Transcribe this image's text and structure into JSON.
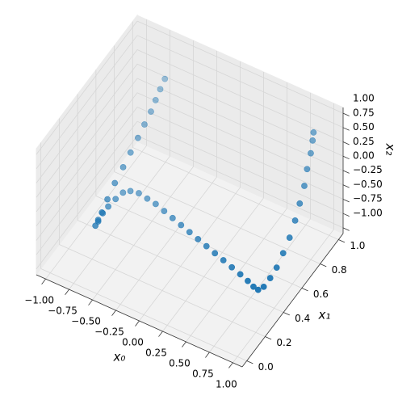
{
  "chart_data": {
    "type": "scatter3d",
    "x": [
      -0.53,
      -0.56,
      -0.59,
      -0.62,
      -0.66,
      -0.7,
      -0.74,
      -0.78,
      -0.82,
      -0.85,
      -0.87,
      -0.88,
      -0.89,
      -0.9,
      -0.9,
      -0.9,
      -0.89,
      -0.87,
      -0.82,
      -0.74,
      -0.64,
      -0.54,
      -0.43,
      -0.32,
      -0.21,
      -0.1,
      0.01,
      0.12,
      0.23,
      0.34,
      0.45,
      0.56,
      0.66,
      0.74,
      0.8,
      0.84,
      0.87,
      0.9,
      0.92,
      0.94,
      0.95,
      0.96,
      0.97,
      0.97,
      0.98,
      0.98,
      0.98
    ],
    "y": [
      0.77,
      0.75,
      0.73,
      0.71,
      0.68,
      0.65,
      0.61,
      0.57,
      0.52,
      0.47,
      0.43,
      0.4,
      0.38,
      0.42,
      0.47,
      0.53,
      0.6,
      0.66,
      0.69,
      0.7,
      0.69,
      0.68,
      0.66,
      0.64,
      0.62,
      0.6,
      0.58,
      0.56,
      0.54,
      0.52,
      0.5,
      0.48,
      0.46,
      0.44,
      0.43,
      0.45,
      0.49,
      0.53,
      0.58,
      0.63,
      0.68,
      0.72,
      0.76,
      0.79,
      0.82,
      0.84,
      0.85
    ],
    "z": [
      1.0,
      0.84,
      0.67,
      0.49,
      0.3,
      0.1,
      -0.1,
      -0.3,
      -0.5,
      -0.7,
      -0.86,
      -0.96,
      -1.0,
      -0.99,
      -0.98,
      -0.99,
      -1.0,
      -1.0,
      -1.0,
      -1.0,
      -1.0,
      -1.0,
      -1.0,
      -1.0,
      -1.0,
      -1.0,
      -1.0,
      -1.0,
      -1.0,
      -1.0,
      -1.0,
      -1.0,
      -1.0,
      -1.0,
      -0.99,
      -0.95,
      -0.86,
      -0.74,
      -0.58,
      -0.4,
      -0.2,
      0.02,
      0.25,
      0.48,
      0.7,
      0.88,
      1.0
    ],
    "color": "#1f77b4",
    "xlabel": "x₀",
    "ylabel": "x₁",
    "zlabel": "x₂",
    "xlim": [
      -1.1,
      1.1
    ],
    "ylim": [
      -0.05,
      1.05
    ],
    "zlim": [
      -1.1,
      1.1
    ],
    "xticks": [
      {
        "value": -1,
        "label": "−1.00"
      },
      {
        "value": -0.75,
        "label": "−0.75"
      },
      {
        "value": -0.5,
        "label": "−0.50"
      },
      {
        "value": -0.25,
        "label": "−0.25"
      },
      {
        "value": 0,
        "label": "0.00"
      },
      {
        "value": 0.25,
        "label": "0.25"
      },
      {
        "value": 0.5,
        "label": "0.50"
      },
      {
        "value": 0.75,
        "label": "0.75"
      },
      {
        "value": 1,
        "label": "1.00"
      }
    ],
    "yticks": [
      {
        "value": 0,
        "label": "0.0"
      },
      0.2,
      0.4,
      0.6,
      0.8,
      {
        "value": 1,
        "label": "1.0"
      }
    ],
    "zticks": [
      {
        "value": -1,
        "label": "−1.00"
      },
      {
        "value": -0.75,
        "label": "−0.75"
      },
      {
        "value": -0.5,
        "label": "−0.50"
      },
      {
        "value": -0.25,
        "label": "−0.25"
      },
      {
        "value": 0,
        "label": "0.00"
      },
      {
        "value": 0.25,
        "label": "0.25"
      },
      {
        "value": 0.5,
        "label": "0.50"
      },
      {
        "value": 0.75,
        "label": "0.75"
      },
      {
        "value": 1,
        "label": "1.00"
      }
    ],
    "grid": true
  }
}
